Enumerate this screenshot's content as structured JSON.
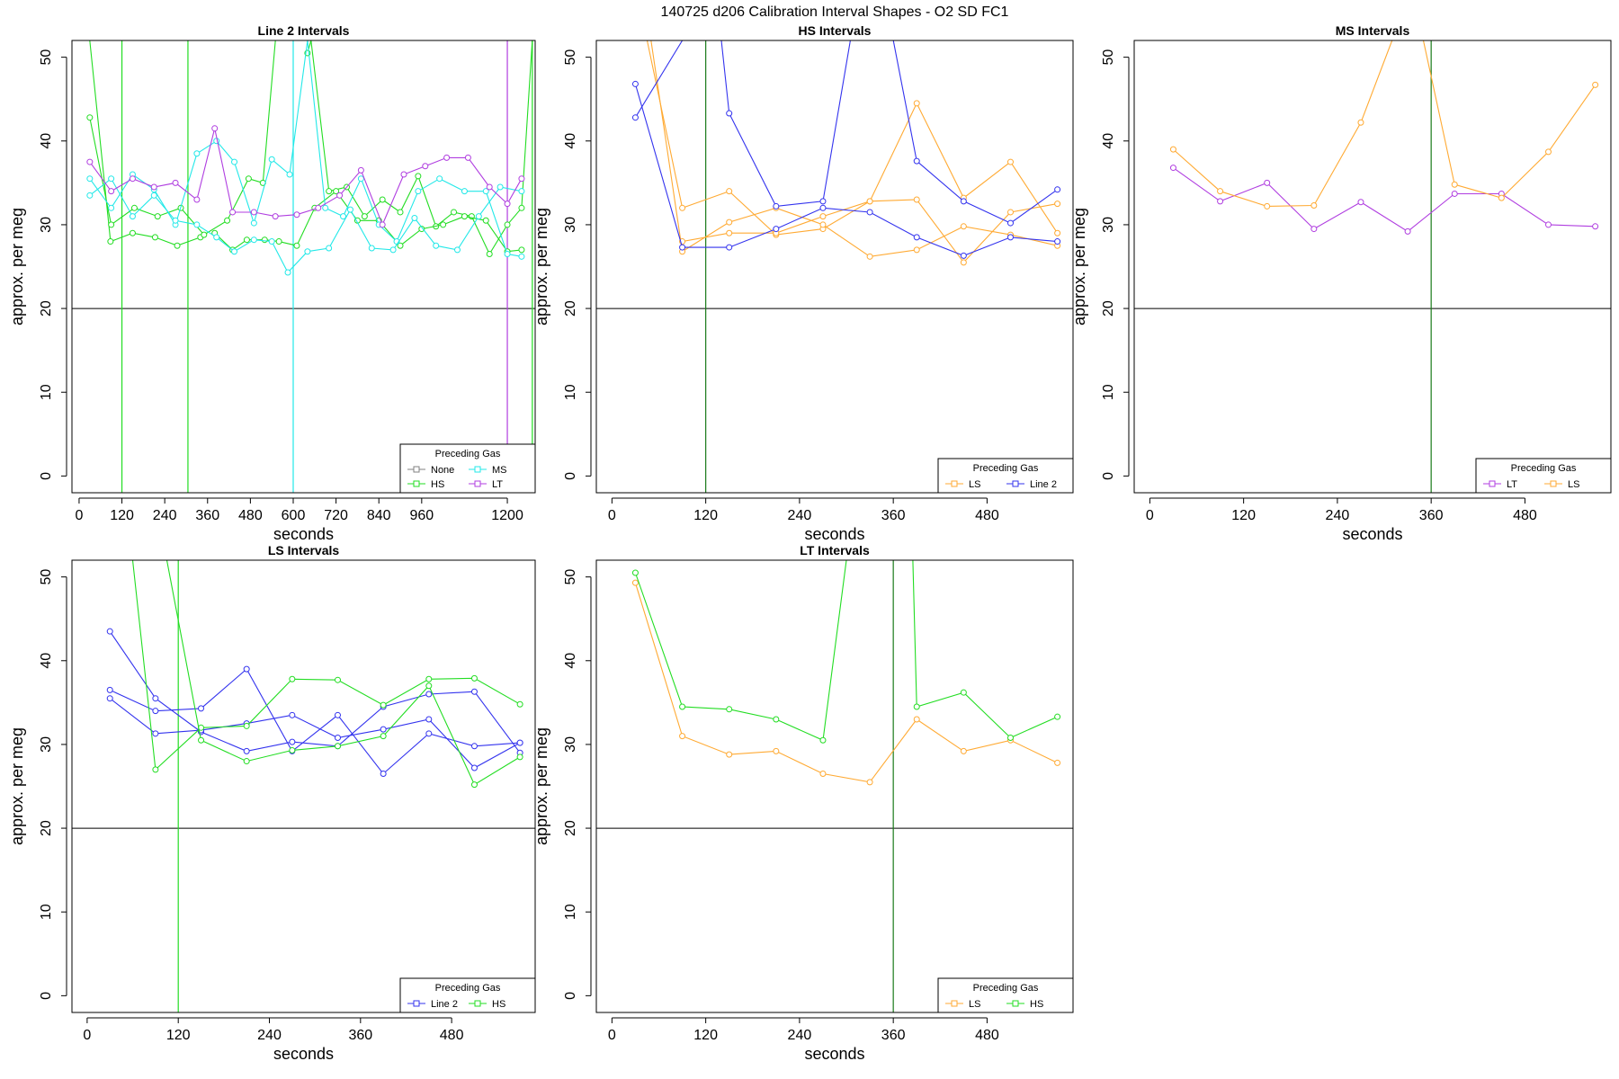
{
  "chart_title": "140725   d206   Calibration Interval Shapes - O2 SD FC1",
  "colors": {
    "None": "#808080",
    "HS": "#22dd22",
    "MS": "#22e8e8",
    "LT": "#b03ee0",
    "LS": "#ffaa33",
    "Line 2": "#3333ee",
    "hline": "#000000",
    "vline_dark_green": "#1a7a1a"
  },
  "chart_data": [
    {
      "type": "line",
      "title": "Line 2 Intervals",
      "xlabel": "seconds",
      "ylabel": "approx. per meg",
      "xlim": [
        -20,
        1278
      ],
      "ylim": [
        -2,
        52
      ],
      "xticks": [
        0,
        120,
        240,
        360,
        480,
        600,
        720,
        840,
        960,
        1200
      ],
      "yticks": [
        0,
        10,
        20,
        30,
        40,
        50
      ],
      "hline": 20,
      "vlines": [
        {
          "x": 120,
          "color": "HS"
        },
        {
          "x": 305,
          "color": "HS"
        },
        {
          "x": 600,
          "color": "MS"
        },
        {
          "x": 1200,
          "color": "LT"
        },
        {
          "x": 1270,
          "color": "HS"
        }
      ],
      "legend": {
        "title": "Preceding Gas",
        "position": "bottom-right",
        "entries": [
          "None",
          "HS",
          "MS",
          "LT"
        ],
        "columns": 2
      },
      "series": [
        {
          "name": "HS",
          "x": [
            30,
            88,
            150,
            213,
            275,
            340
          ],
          "y": [
            52,
            28,
            29,
            28.5,
            27.5,
            28.5
          ]
        },
        {
          "name": "HS",
          "x": [
            30,
            90,
            155,
            220,
            285,
            350,
            415,
            475,
            515,
            550
          ],
          "y": [
            42.8,
            30,
            32,
            31,
            32,
            28.8,
            30.5,
            35.5,
            35,
            52
          ]
        },
        {
          "name": "HS",
          "x": [
            640,
            650,
            700,
            750,
            800,
            850,
            900,
            950,
            1000,
            1050,
            1100,
            1150,
            1200,
            1240,
            1270
          ],
          "y": [
            50.5,
            52,
            34,
            34.5,
            31,
            33,
            31.5,
            35.8,
            29.8,
            31.5,
            31,
            26.5,
            30,
            32,
            52
          ]
        },
        {
          "name": "HS",
          "x": [
            380,
            430,
            470,
            520,
            560,
            610,
            660,
            720,
            780,
            840,
            900,
            960,
            1020,
            1080,
            1140,
            1200,
            1240
          ],
          "y": [
            29,
            27,
            28.2,
            28.2,
            28,
            27.5,
            32,
            34,
            30.5,
            30.5,
            27.5,
            29.5,
            30,
            31,
            30.5,
            26.8,
            27
          ]
        },
        {
          "name": "MS",
          "x": [
            30,
            90,
            150,
            210,
            270,
            330,
            385,
            435,
            490,
            540,
            590,
            640,
            690,
            740,
            790,
            840,
            890,
            950,
            1010,
            1080,
            1140,
            1200,
            1240
          ],
          "y": [
            35.5,
            32,
            36,
            34.2,
            30,
            38.5,
            40,
            37.5,
            30.2,
            37.8,
            36,
            52,
            32,
            31,
            35.5,
            30,
            28,
            34,
            35.5,
            34,
            34,
            26.5,
            26.2
          ]
        },
        {
          "name": "MS",
          "x": [
            30,
            90,
            150,
            210,
            270,
            330,
            385,
            435,
            490,
            540,
            585,
            640,
            700,
            760,
            820,
            880,
            940,
            1000,
            1060,
            1120,
            1180,
            1240
          ],
          "y": [
            33.5,
            35.5,
            31,
            33.5,
            30.5,
            30,
            28.5,
            26.8,
            28.2,
            28,
            24.3,
            26.8,
            27.2,
            31.8,
            27.2,
            27,
            30.8,
            27.5,
            27,
            31,
            34.5,
            34
          ]
        },
        {
          "name": "LT",
          "x": [
            30,
            90,
            150,
            210,
            270,
            330,
            380,
            430,
            490,
            550,
            610,
            670,
            730,
            790,
            850,
            910,
            970,
            1030,
            1090,
            1150,
            1200,
            1240
          ],
          "y": [
            37.5,
            34,
            35.5,
            34.5,
            35,
            33,
            41.5,
            31.5,
            31.5,
            31,
            31.2,
            32,
            33.5,
            36.5,
            30,
            36,
            37,
            38,
            38,
            34.5,
            32.5,
            35.5
          ]
        }
      ]
    },
    {
      "type": "line",
      "title": "HS Intervals",
      "xlabel": "seconds",
      "ylabel": "approx. per meg",
      "xlim": [
        -20,
        590
      ],
      "ylim": [
        -2,
        52
      ],
      "xticks": [
        0,
        120,
        240,
        360,
        480
      ],
      "yticks": [
        0,
        10,
        20,
        30,
        40,
        50
      ],
      "hline": 20,
      "vlines": [
        {
          "x": 120,
          "color": "vline_dark_green"
        }
      ],
      "legend": {
        "title": "Preceding Gas",
        "position": "bottom-right",
        "entries": [
          "LS",
          "Line 2"
        ],
        "columns": 2
      },
      "series": [
        {
          "name": "LS",
          "x": [
            45,
            90,
            150,
            210,
            270,
            330,
            390,
            450,
            510,
            570
          ],
          "y": [
            52,
            32,
            34,
            28.8,
            29.5,
            32.8,
            44.5,
            33.2,
            37.5,
            29
          ]
        },
        {
          "name": "LS",
          "x": [
            50,
            90,
            150,
            210,
            270,
            330,
            390,
            450,
            510,
            570
          ],
          "y": [
            52,
            26.8,
            30.3,
            32,
            30,
            26.2,
            27,
            29.8,
            28.8,
            27.5
          ]
        },
        {
          "name": "LS",
          "x": [
            90,
            150,
            210,
            270,
            330,
            390,
            450,
            510,
            570
          ],
          "y": [
            28,
            29,
            29,
            31,
            32.8,
            33,
            25.5,
            31.5,
            32.5
          ]
        },
        {
          "name": "Line 2",
          "x": [
            30,
            90,
            150,
            210,
            270,
            330,
            390,
            450,
            510,
            570
          ],
          "y": [
            46.8,
            27.3,
            27.3,
            29.5,
            32,
            31.5,
            28.5,
            26.3,
            28.5,
            28
          ]
        },
        {
          "name": "Line 2",
          "x": [
            30,
            90,
            140,
            150,
            210,
            270,
            305,
            360,
            390,
            450,
            510,
            570
          ],
          "y": [
            42.8,
            52,
            52,
            43.3,
            32.2,
            32.8,
            52,
            52,
            37.6,
            32.8,
            30.2,
            34.2
          ]
        }
      ]
    },
    {
      "type": "line",
      "title": "MS Intervals",
      "xlabel": "seconds",
      "ylabel": "approx. per meg",
      "xlim": [
        -20,
        590
      ],
      "ylim": [
        -2,
        52
      ],
      "xticks": [
        0,
        120,
        240,
        360,
        480
      ],
      "yticks": [
        0,
        10,
        20,
        30,
        40,
        50
      ],
      "hline": 20,
      "vlines": [
        {
          "x": 360,
          "color": "vline_dark_green"
        }
      ],
      "legend": {
        "title": "Preceding Gas",
        "position": "bottom-right",
        "entries": [
          "LT",
          "LS"
        ],
        "columns": 2
      },
      "series": [
        {
          "name": "LT",
          "x": [
            30,
            90,
            150,
            210,
            270,
            330,
            390,
            450,
            510,
            570
          ],
          "y": [
            36.8,
            32.8,
            35,
            29.5,
            32.7,
            29.2,
            33.7,
            33.7,
            30,
            29.8
          ]
        },
        {
          "name": "LS",
          "x": [
            30,
            90,
            150,
            210,
            270,
            310,
            350,
            390,
            450,
            510,
            570
          ],
          "y": [
            39,
            34,
            32.2,
            32.3,
            42.2,
            52,
            52,
            34.8,
            33.2,
            38.7,
            46.7
          ]
        }
      ]
    },
    {
      "type": "line",
      "title": "LS Intervals",
      "xlabel": "seconds",
      "ylabel": "approx. per meg",
      "xlim": [
        -20,
        590
      ],
      "ylim": [
        -2,
        52
      ],
      "xticks": [
        0,
        120,
        240,
        360,
        480
      ],
      "yticks": [
        0,
        10,
        20,
        30,
        40,
        50
      ],
      "hline": 20,
      "vlines": [
        {
          "x": 120,
          "color": "HS"
        }
      ],
      "legend": {
        "title": "Preceding Gas",
        "position": "bottom-right",
        "entries": [
          "Line 2",
          "HS"
        ],
        "columns": 2
      },
      "series": [
        {
          "name": "Line 2",
          "x": [
            30,
            90,
            150,
            210,
            270,
            330,
            390,
            450,
            510,
            570
          ],
          "y": [
            43.5,
            35.5,
            31.5,
            29.2,
            30.3,
            29.8,
            34.5,
            36,
            36.3,
            29
          ]
        },
        {
          "name": "Line 2",
          "x": [
            30,
            90,
            150,
            210,
            270,
            330,
            390,
            450,
            510,
            570
          ],
          "y": [
            36.5,
            34,
            34.3,
            39,
            29.2,
            33.5,
            26.5,
            31.3,
            29.8,
            30.2
          ]
        },
        {
          "name": "Line 2",
          "x": [
            30,
            90,
            150,
            210,
            270,
            330,
            390,
            450,
            510,
            570
          ],
          "y": [
            35.5,
            31.3,
            31.7,
            32.5,
            33.5,
            30.8,
            31.8,
            33,
            27.2,
            30.2
          ]
        },
        {
          "name": "HS",
          "x": [
            60,
            90,
            150,
            210,
            270,
            330,
            390,
            450,
            510,
            570
          ],
          "y": [
            52,
            27,
            32,
            32.2,
            37.8,
            37.7,
            34.7,
            37.8,
            37.9,
            34.8
          ]
        },
        {
          "name": "HS",
          "x": [
            105,
            150,
            210,
            270,
            330,
            390,
            450,
            510,
            570
          ],
          "y": [
            52,
            30.5,
            28,
            29.3,
            29.8,
            31,
            37,
            25.2,
            28.5
          ]
        }
      ]
    },
    {
      "type": "line",
      "title": "LT Intervals",
      "xlabel": "seconds",
      "ylabel": "approx. per meg",
      "xlim": [
        -20,
        590
      ],
      "ylim": [
        -2,
        52
      ],
      "xticks": [
        0,
        120,
        240,
        360,
        480
      ],
      "yticks": [
        0,
        10,
        20,
        30,
        40,
        50
      ],
      "hline": 20,
      "vlines": [
        {
          "x": 360,
          "color": "vline_dark_green"
        }
      ],
      "legend": {
        "title": "Preceding Gas",
        "position": "bottom-right",
        "entries": [
          "LS",
          "HS"
        ],
        "columns": 2
      },
      "series": [
        {
          "name": "LS",
          "x": [
            30,
            90,
            150,
            210,
            270,
            330,
            390,
            450,
            510,
            570
          ],
          "y": [
            49.3,
            31,
            28.8,
            29.2,
            26.5,
            25.5,
            33,
            29.2,
            30.5,
            27.8
          ]
        },
        {
          "name": "HS",
          "x": [
            30,
            90,
            150,
            210,
            270,
            300,
            385,
            390,
            450,
            510,
            570
          ],
          "y": [
            50.5,
            34.5,
            34.2,
            33,
            30.5,
            52,
            52,
            34.5,
            36.2,
            30.8,
            33.3
          ]
        }
      ]
    }
  ]
}
